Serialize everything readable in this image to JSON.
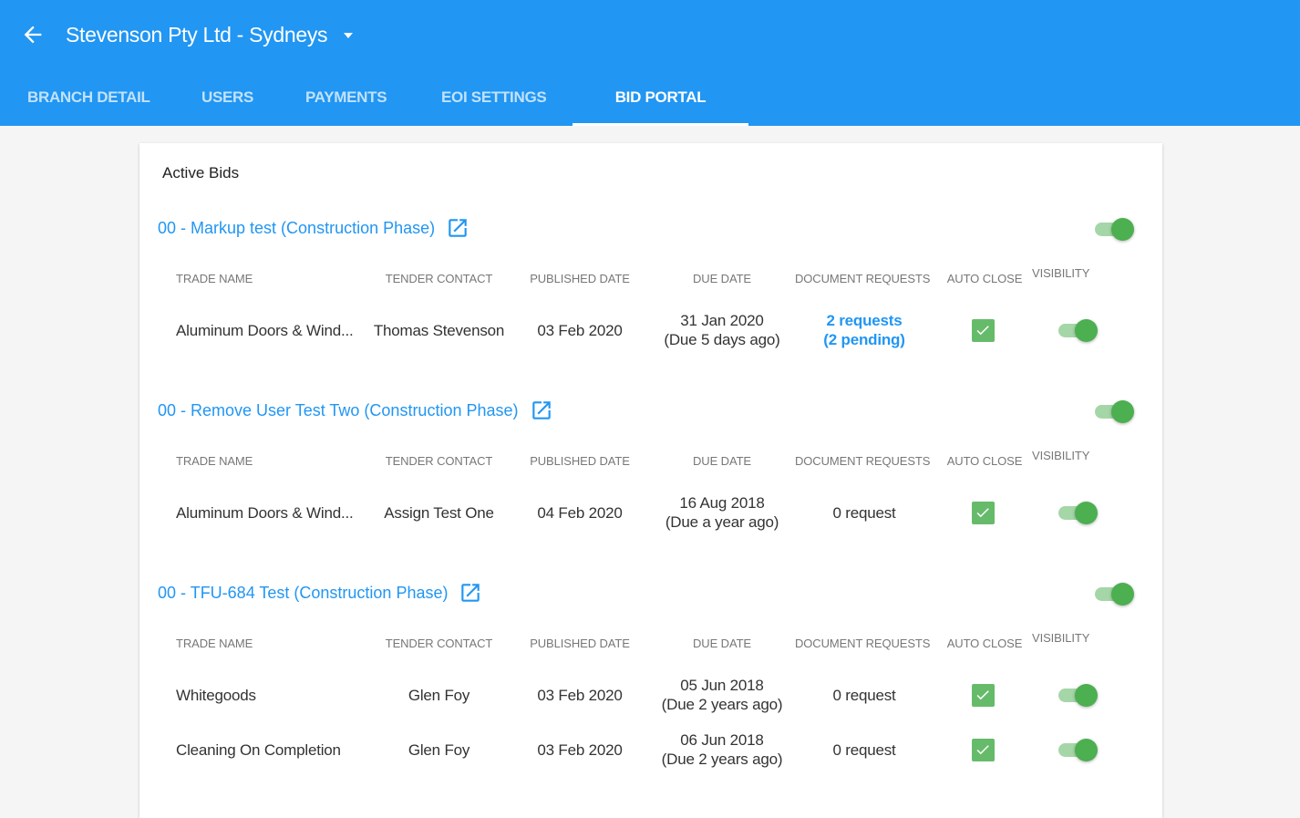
{
  "header": {
    "title": "Stevenson Pty Ltd - Sydneys",
    "back_icon": "arrow-left-icon",
    "dropdown_icon": "caret-down-icon",
    "color": "#2196f3"
  },
  "tabs": [
    {
      "label": "BRANCH DETAIL"
    },
    {
      "label": "USERS"
    },
    {
      "label": "PAYMENTS"
    },
    {
      "label": "EOI SETTINGS"
    },
    {
      "label": "BID PORTAL",
      "active": true
    }
  ],
  "card": {
    "title": "Active Bids"
  },
  "columns": {
    "trade": "TRADE NAME",
    "contact": "TENDER CONTACT",
    "published": "PUBLISHED DATE",
    "due": "DUE DATE",
    "docs": "DOCUMENT REQUESTS",
    "auto": "AUTO CLOSE",
    "visibility": "VISIBILITY"
  },
  "sections": [
    {
      "title": "00 - Markup test (Construction Phase)",
      "enabled": true,
      "rows": [
        {
          "trade": "Aluminum Doors & Wind...",
          "contact": "Thomas Stevenson",
          "published": "03 Feb 2020",
          "due": "31 Jan 2020",
          "due_rel": "(Due 5 days ago)",
          "docs": "2 requests",
          "docs2": "(2 pending)",
          "docs_link": true,
          "auto_close": true,
          "visible": true
        }
      ]
    },
    {
      "title": "00 - Remove User Test Two (Construction Phase)",
      "enabled": true,
      "rows": [
        {
          "trade": "Aluminum Doors & Wind...",
          "contact": "Assign Test One",
          "published": "04 Feb 2020",
          "due": "16 Aug 2018",
          "due_rel": "(Due a year ago)",
          "docs": "0 request",
          "auto_close": true,
          "visible": true
        }
      ]
    },
    {
      "title": "00 - TFU-684 Test (Construction Phase)",
      "enabled": true,
      "rows": [
        {
          "trade": "Whitegoods",
          "contact": "Glen Foy",
          "published": "03 Feb 2020",
          "due": "05 Jun 2018",
          "due_rel": "(Due 2 years ago)",
          "docs": "0 request",
          "auto_close": true,
          "visible": true
        },
        {
          "trade": "Cleaning On Completion",
          "contact": "Glen Foy",
          "published": "03 Feb 2020",
          "due": "06 Jun 2018",
          "due_rel": "(Due 2 years ago)",
          "docs": "0 request",
          "auto_close": true,
          "visible": true
        }
      ]
    }
  ]
}
